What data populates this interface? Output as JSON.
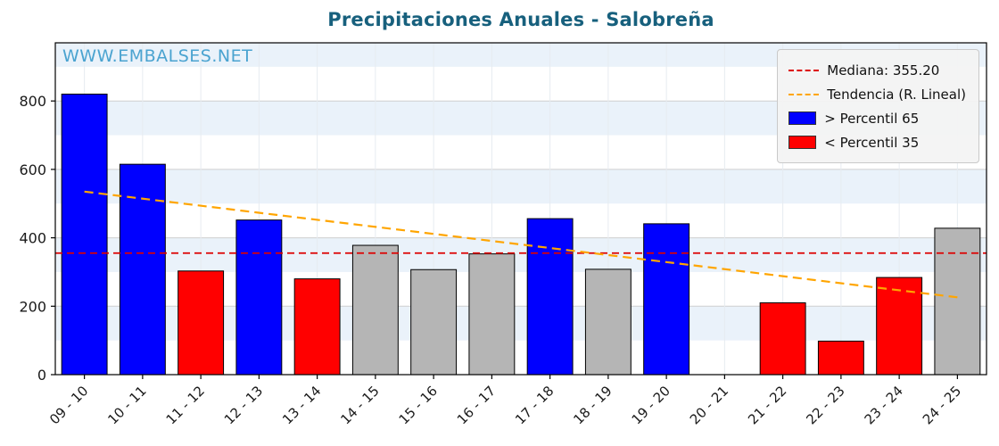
{
  "title": "Precipitaciones Anuales - Salobreña",
  "watermark": "WWW.EMBALSES.NET",
  "colors": {
    "title": "#17607d",
    "watermark": "#4aa3d0",
    "blue": "#0000ff",
    "red": "#ff0000",
    "gray": "#b5b5b5",
    "median_line": "#dd0000",
    "trend_line": "#ffa500",
    "band": "#eaf2fa",
    "grid": "#cfcfcf",
    "vgrid": "#e6ebf0",
    "bar_edge": "#000000",
    "axis": "#000000"
  },
  "legend": [
    {
      "type": "line",
      "color": "#dd0000",
      "label": "Mediana: 355.20"
    },
    {
      "type": "line",
      "color": "#ffa500",
      "label": "Tendencia (R. Lineal)"
    },
    {
      "type": "box",
      "color": "#0000ff",
      "label": "> Percentil 65"
    },
    {
      "type": "box",
      "color": "#ff0000",
      "label": "< Percentil 35"
    }
  ],
  "chart_data": {
    "type": "bar",
    "title": "Precipitaciones Anuales - Salobreña",
    "xlabel": "",
    "ylabel": "",
    "categories": [
      "09 - 10",
      "10 - 11",
      "11 - 12",
      "12 - 13",
      "13 - 14",
      "14 - 15",
      "15 - 16",
      "16 - 17",
      "17 - 18",
      "18 - 19",
      "19 - 20",
      "20 - 21",
      "21 - 22",
      "22 - 23",
      "23 - 24",
      "24 - 25"
    ],
    "values": [
      820,
      615,
      303,
      452,
      280,
      378,
      307,
      353,
      456,
      308,
      441,
      0,
      210,
      98,
      284,
      428
    ],
    "color_keys": [
      "blue",
      "blue",
      "red",
      "blue",
      "red",
      "gray",
      "gray",
      "gray",
      "blue",
      "gray",
      "blue",
      null,
      "red",
      "red",
      "red",
      "gray"
    ],
    "median": 355.2,
    "trend": {
      "start": 535,
      "end": 226
    },
    "ylim": [
      0,
      970
    ],
    "yticks": [
      0,
      200,
      400,
      600,
      800
    ],
    "grid": true,
    "legend_position": "upper right"
  }
}
